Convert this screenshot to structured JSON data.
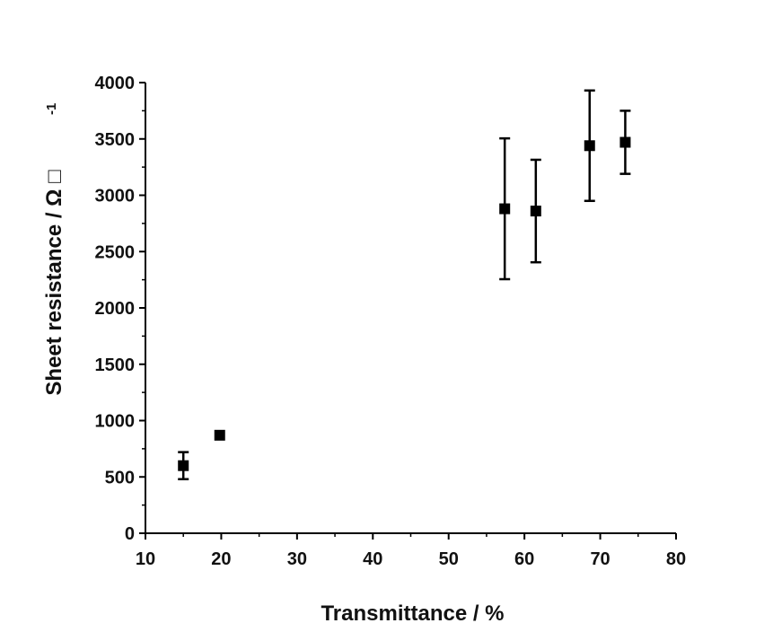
{
  "chart_data": {
    "type": "scatter",
    "title": "",
    "xlabel": "Transmittance / %",
    "ylabel": "Sheet resistance / Ω □",
    "ylabel_superscript": "-1",
    "xlim": [
      10,
      80
    ],
    "ylim": [
      0,
      4000
    ],
    "x_ticks": [
      10,
      20,
      30,
      40,
      50,
      60,
      70,
      80
    ],
    "y_ticks": [
      0,
      500,
      1000,
      1500,
      2000,
      2500,
      3000,
      3500,
      4000
    ],
    "grid": false,
    "legend": "none",
    "marker": "square",
    "series": [
      {
        "points": [
          {
            "x": 15.0,
            "y": 600,
            "err": 120
          },
          {
            "x": 19.8,
            "y": 870,
            "err": 0
          },
          {
            "x": 57.4,
            "y": 2880,
            "err": 625
          },
          {
            "x": 61.5,
            "y": 2860,
            "err": 455
          },
          {
            "x": 68.6,
            "y": 3440,
            "err": 490
          },
          {
            "x": 73.3,
            "y": 3470,
            "err": 280
          }
        ]
      }
    ],
    "colors": {
      "marker": "#000000",
      "axis": "#000000"
    }
  }
}
